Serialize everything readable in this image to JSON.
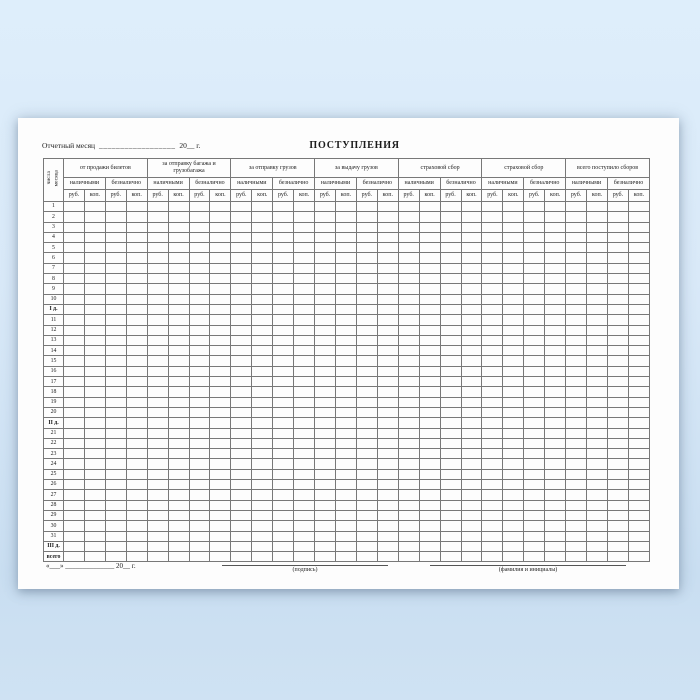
{
  "header": {
    "report_month_label": "Отчетный месяц",
    "report_month_blank": "__________________",
    "year_text": "20__ г.",
    "title": "ПОСТУПЛЕНИЯ"
  },
  "table": {
    "day_column_header": "числа месяца",
    "column_groups": [
      "от продажи билетов",
      "за отправку багажа и грузобагажа",
      "за отправку грузов",
      "за выдачу грузов",
      "страховой сбор",
      "страховой сбор",
      "всего поступило сборов"
    ],
    "payment_methods": [
      "наличными",
      "безналично"
    ],
    "units": [
      "руб.",
      "коп."
    ],
    "row_labels": [
      "1",
      "2",
      "3",
      "4",
      "5",
      "6",
      "7",
      "8",
      "9",
      "10",
      "I д.",
      "11",
      "12",
      "13",
      "14",
      "15",
      "16",
      "17",
      "18",
      "19",
      "20",
      "II д.",
      "21",
      "22",
      "23",
      "24",
      "25",
      "26",
      "27",
      "28",
      "29",
      "30",
      "31",
      "III д.",
      "всего"
    ],
    "summary_labels": [
      "I д.",
      "II д.",
      "III д.",
      "всего"
    ],
    "cells_empty": true
  },
  "footer": {
    "date_line": "«___» ______________ 20__ г.",
    "signature_caption": "(подпись)",
    "name_caption": "(фамилия и инициалы)"
  },
  "colors": {
    "background_top": "#deeefb",
    "background_bottom": "#c9def1",
    "sheet": "#fdfdfd",
    "grid_line": "#787878",
    "text": "#1b1b1b"
  }
}
